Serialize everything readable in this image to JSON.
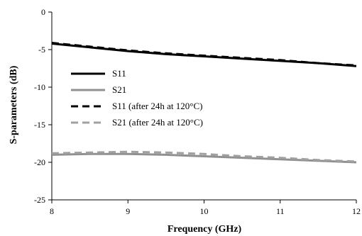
{
  "chart_data": {
    "type": "line",
    "xlabel": "Frequency (GHz)",
    "ylabel": "S-parameters (dB)",
    "xlim": [
      8,
      12
    ],
    "ylim": [
      -25,
      0
    ],
    "xticks": [
      8,
      9,
      10,
      11,
      12
    ],
    "yticks": [
      0,
      -5,
      -10,
      -15,
      -20,
      -25
    ],
    "grid": false,
    "legend_position": "center-left",
    "series": [
      {
        "name": "S11",
        "color": "#000000",
        "dash": "solid",
        "x": [
          8,
          8.5,
          9,
          9.5,
          10,
          10.5,
          11,
          11.5,
          12
        ],
        "y": [
          -4.2,
          -4.7,
          -5.2,
          -5.6,
          -5.9,
          -6.2,
          -6.5,
          -6.8,
          -7.2
        ]
      },
      {
        "name": "S21",
        "color": "#909090",
        "dash": "solid",
        "x": [
          8,
          8.5,
          9,
          9.5,
          10,
          10.5,
          11,
          11.5,
          12
        ],
        "y": [
          -19.0,
          -18.9,
          -18.9,
          -19.0,
          -19.2,
          -19.4,
          -19.6,
          -19.8,
          -20.0
        ]
      },
      {
        "name": "S11 (after 24h at 120°C)",
        "color": "#000000",
        "dash": "dashed",
        "x": [
          8,
          8.5,
          9,
          9.5,
          10,
          10.5,
          11,
          11.5,
          12
        ],
        "y": [
          -4.1,
          -4.6,
          -5.1,
          -5.5,
          -5.8,
          -6.1,
          -6.4,
          -6.8,
          -7.1
        ]
      },
      {
        "name": "S21 (after 24h at 120°C)",
        "color": "#a0a0a0",
        "dash": "dashed",
        "x": [
          8,
          8.5,
          9,
          9.5,
          10,
          10.5,
          11,
          11.5,
          12
        ],
        "y": [
          -18.8,
          -18.7,
          -18.6,
          -18.7,
          -18.9,
          -19.2,
          -19.4,
          -19.7,
          -19.9
        ]
      }
    ]
  }
}
